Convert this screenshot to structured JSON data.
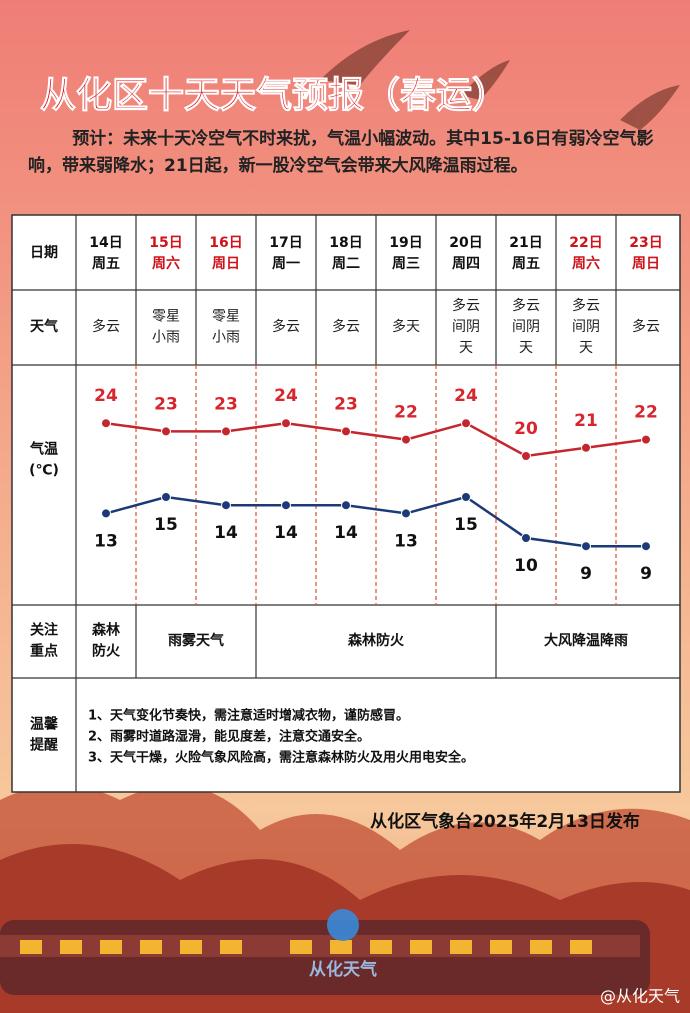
{
  "header": {
    "title": "从化区十天天气预报（春运）",
    "intro": "预计：未来十天冷空气不时来扰，气温小幅波动。其中15-16日有弱冷空气影响，带来弱降水；21日起，新一股冷空气会带来大风降温雨过程。"
  },
  "table": {
    "row_labels": {
      "date": "日期",
      "weather": "天气",
      "temperature": [
        "气温",
        "(℃)"
      ],
      "focus": [
        "关注",
        "重点"
      ],
      "tips": [
        "温馨",
        "提醒"
      ]
    },
    "days": [
      {
        "date": "14日",
        "weekday": "周五",
        "color": "#111111",
        "weather": [
          "多云"
        ]
      },
      {
        "date": "15日",
        "weekday": "周六",
        "color": "#d0121b",
        "weather": [
          "零星",
          "小雨"
        ]
      },
      {
        "date": "16日",
        "weekday": "周日",
        "color": "#d0121b",
        "weather": [
          "零星",
          "小雨"
        ]
      },
      {
        "date": "17日",
        "weekday": "周一",
        "color": "#111111",
        "weather": [
          "多云"
        ]
      },
      {
        "date": "18日",
        "weekday": "周二",
        "color": "#111111",
        "weather": [
          "多云"
        ]
      },
      {
        "date": "19日",
        "weekday": "周三",
        "color": "#111111",
        "weather": [
          "多天"
        ]
      },
      {
        "date": "20日",
        "weekday": "周四",
        "color": "#111111",
        "weather": [
          "多云",
          "间阴",
          "天"
        ]
      },
      {
        "date": "21日",
        "weekday": "周五",
        "color": "#111111",
        "weather": [
          "多云",
          "间阴",
          "天"
        ]
      },
      {
        "date": "22日",
        "weekday": "周六",
        "color": "#d0121b",
        "weather": [
          "多云",
          "间阴",
          "天"
        ]
      },
      {
        "date": "23日",
        "weekday": "周日",
        "color": "#d0121b",
        "weather": [
          "多云"
        ]
      }
    ],
    "focus": [
      [
        "森林",
        "防火"
      ],
      [
        "雨雾天气"
      ],
      [
        "森林防火"
      ],
      [
        "大风降温降雨"
      ]
    ],
    "tips": [
      "1、天气变化节奏快，需注意适时增减衣物，谨防感冒。",
      "2、雨雾时道路湿滑，能见度差，注意交通安全。",
      "3、天气干燥，火险气象风险高，需注意森林防火及用火用电安全。"
    ]
  },
  "chart_data": {
    "type": "line",
    "series": [
      {
        "color": "#c4262e",
        "values": [
          24,
          23,
          23,
          24,
          23,
          22,
          24,
          20,
          21,
          22
        ]
      },
      {
        "color": "#1c3a78",
        "values": [
          13,
          15,
          14,
          14,
          14,
          13,
          15,
          10,
          9,
          9
        ]
      }
    ]
  },
  "footer": {
    "publisher": "从化区气象台2025年2月13日发布",
    "logo": "从化天气",
    "watermark": "@从化天气"
  }
}
